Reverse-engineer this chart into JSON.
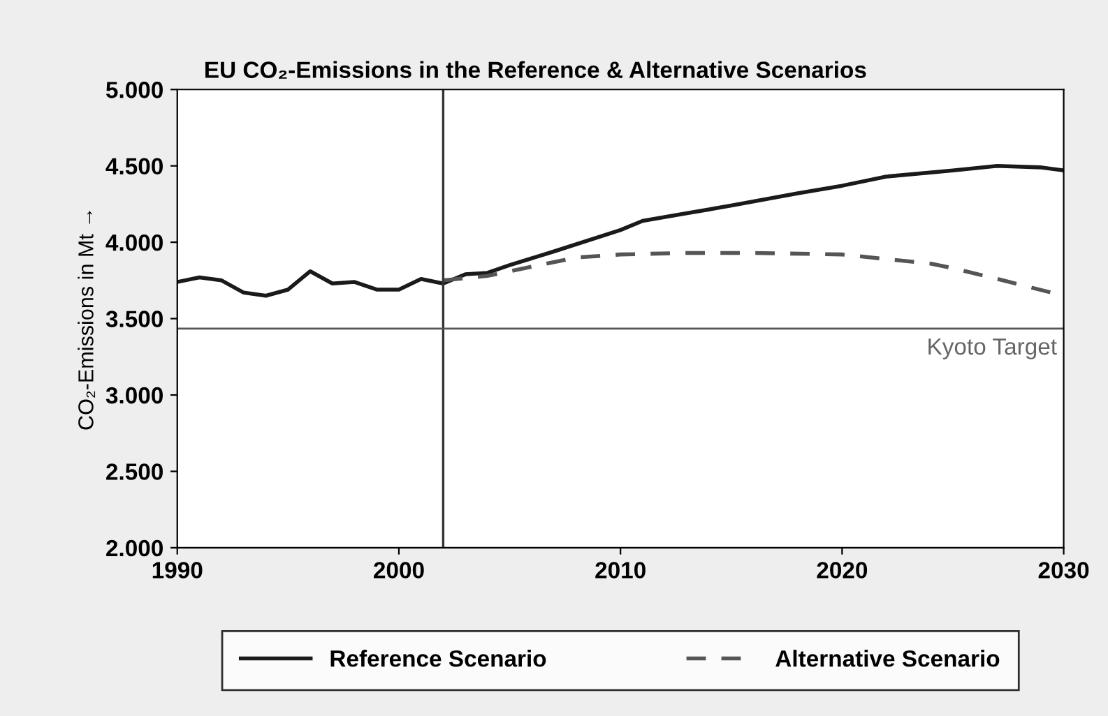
{
  "chart_data": {
    "type": "line",
    "title": "EU CO₂-Emissions in the Reference & Alternative Scenarios",
    "ylabel": "CO₂-Emissions in Mt →",
    "xlim": [
      1990,
      2030
    ],
    "xticks": [
      1990,
      2000,
      2010,
      2020,
      2030
    ],
    "ylim": [
      2000,
      5000
    ],
    "yticks": [
      {
        "value": 2000,
        "label": "2.000"
      },
      {
        "value": 2500,
        "label": "2.500"
      },
      {
        "value": 3000,
        "label": "3.000"
      },
      {
        "value": 3500,
        "label": "3.500"
      },
      {
        "value": 4000,
        "label": "4.000"
      },
      {
        "value": 4500,
        "label": "4.500"
      },
      {
        "value": 5000,
        "label": "5.000"
      }
    ],
    "series": [
      {
        "name": "Reference Scenario",
        "color": "#1a1a1a",
        "line_style": "solid",
        "x": [
          1990,
          1991,
          1992,
          1993,
          1994,
          1995,
          1996,
          1997,
          1998,
          1999,
          2000,
          2001,
          2002,
          2003,
          2004,
          2005,
          2007,
          2010,
          2011,
          2013,
          2015,
          2018,
          2020,
          2022,
          2025,
          2027,
          2029,
          2030
        ],
        "values": [
          3740,
          3770,
          3750,
          3670,
          3650,
          3690,
          3810,
          3730,
          3740,
          3690,
          3690,
          3760,
          3730,
          3790,
          3800,
          3850,
          3940,
          4080,
          4140,
          4190,
          4240,
          4320,
          4370,
          4430,
          4470,
          4500,
          4490,
          4470
        ]
      },
      {
        "name": "Alternative Scenario",
        "color": "#555555",
        "line_style": "dashed",
        "x": [
          2002,
          2004,
          2006,
          2008,
          2010,
          2013,
          2016,
          2020,
          2022,
          2024,
          2025,
          2027,
          2030
        ],
        "values": [
          3750,
          3780,
          3840,
          3900,
          3920,
          3930,
          3930,
          3920,
          3890,
          3860,
          3830,
          3760,
          3650
        ]
      }
    ],
    "ref_lines": [
      {
        "axis": "x",
        "value": 2002,
        "color": "#333333"
      },
      {
        "axis": "y",
        "value": 3435,
        "label": "Kyoto Target",
        "color": "#555555"
      }
    ],
    "legend": "bottom",
    "grid": false
  }
}
